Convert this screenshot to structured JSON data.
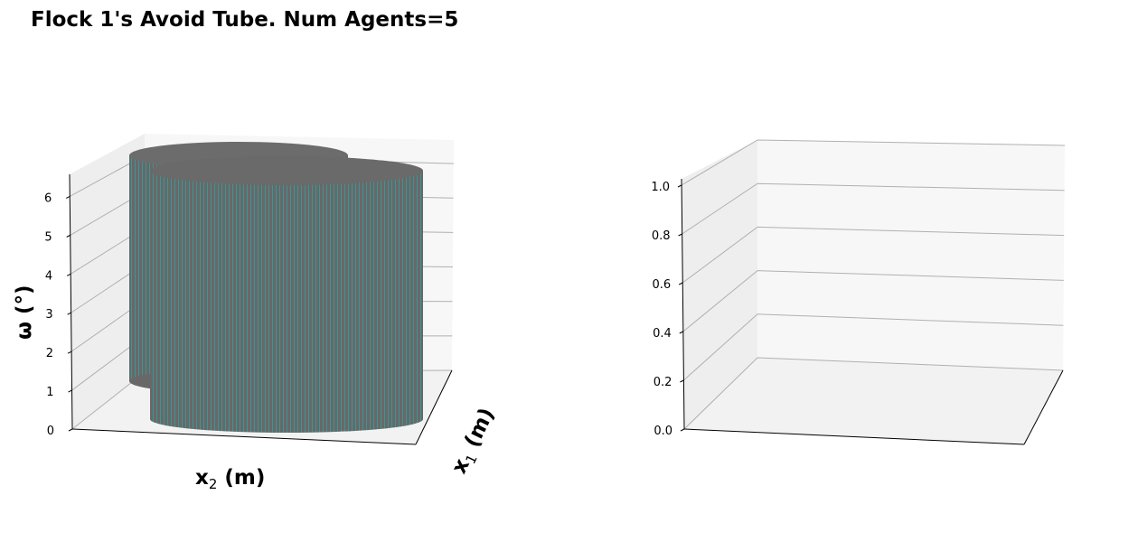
{
  "figure": {
    "title": "Flock 1's Avoid Tube. Num Agents=5"
  },
  "chart_data": [
    {
      "type": "3d-surface",
      "xlabel_main": "x",
      "xlabel_sub": "2",
      "xlabel_unit": " (m)",
      "ylabel_main": "x",
      "ylabel_sub": "1",
      "ylabel_unit": " (m)",
      "zlabel": "ω (°)",
      "zlim": [
        0,
        6.5
      ],
      "zticks": [
        "0",
        "1",
        "2",
        "3",
        "4",
        "5",
        "6"
      ],
      "surface_colors": {
        "body": "#686868",
        "mesh": "#2aa5a5"
      },
      "series": [
        {
          "name": "",
          "shape": "cylinder",
          "z_range": [
            0,
            6.5
          ]
        },
        {
          "name": "",
          "shape": "cylinder",
          "z_range": [
            0,
            6.5
          ]
        }
      ]
    },
    {
      "type": "3d-empty",
      "zlim": [
        0,
        1
      ],
      "zticks": [
        "0.0",
        "0.2",
        "0.4",
        "0.6",
        "0.8",
        "1.0"
      ]
    }
  ],
  "colors": {
    "pane_back": "#f7f7f7",
    "pane_side": "#eeeeee",
    "pane_floor": "#f2f2f2",
    "grid": "#b0b0b0"
  }
}
